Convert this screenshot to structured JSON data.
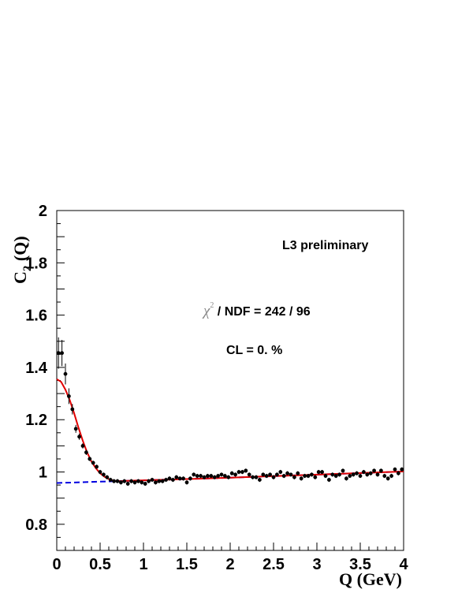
{
  "chart_data": {
    "type": "scatter",
    "xlabel": "Q (GeV)",
    "ylabel_main": "C",
    "ylabel_sub": "2",
    "ylabel_tail": " (Q)",
    "xlim": [
      0,
      4
    ],
    "ylim": [
      0.7,
      2.0
    ],
    "x_ticks": [
      0,
      0.5,
      1,
      1.5,
      2,
      2.5,
      3,
      3.5,
      4
    ],
    "x_tick_labels": [
      "0",
      "0.5",
      "1",
      "1.5",
      "2",
      "2.5",
      "3",
      "3.5",
      "4"
    ],
    "y_ticks": [
      0.8,
      1.0,
      1.2,
      1.4,
      1.6,
      1.8,
      2.0
    ],
    "y_tick_labels": [
      "0.8",
      "1",
      "1.2",
      "1.4",
      "1.6",
      "1.8",
      "2"
    ],
    "annotations": {
      "experiment": "L3 preliminary",
      "chi_symbol": "χ",
      "chi_exp": "2",
      "chi_text": " / NDF = 242 / 96",
      "cl_text": "CL = 0. %"
    },
    "series": [
      {
        "kind": "data",
        "x": [
          0.02,
          0.06,
          0.1,
          0.14,
          0.18,
          0.22,
          0.26,
          0.3,
          0.34,
          0.38,
          0.42,
          0.46,
          0.5,
          0.54,
          0.58,
          0.62,
          0.66,
          0.7,
          0.74,
          0.78,
          0.82,
          0.86,
          0.9,
          0.94,
          0.98,
          1.02,
          1.06,
          1.1,
          1.14,
          1.18,
          1.22,
          1.26,
          1.3,
          1.34,
          1.38,
          1.42,
          1.46,
          1.5,
          1.54,
          1.58,
          1.62,
          1.66,
          1.7,
          1.74,
          1.78,
          1.82,
          1.86,
          1.9,
          1.94,
          1.98,
          2.02,
          2.06,
          2.1,
          2.14,
          2.18,
          2.22,
          2.26,
          2.3,
          2.34,
          2.38,
          2.42,
          2.46,
          2.5,
          2.54,
          2.58,
          2.62,
          2.66,
          2.7,
          2.74,
          2.78,
          2.82,
          2.86,
          2.9,
          2.94,
          2.98,
          3.02,
          3.06,
          3.1,
          3.14,
          3.18,
          3.22,
          3.26,
          3.3,
          3.34,
          3.38,
          3.42,
          3.46,
          3.5,
          3.54,
          3.58,
          3.62,
          3.66,
          3.7,
          3.74,
          3.78,
          3.82,
          3.86,
          3.9,
          3.94,
          3.98
        ],
        "y": [
          1.455,
          1.455,
          1.375,
          1.29,
          1.24,
          1.165,
          1.135,
          1.1,
          1.075,
          1.05,
          1.035,
          1.02,
          1.0,
          0.99,
          0.98,
          0.97,
          0.965,
          0.965,
          0.96,
          0.965,
          0.955,
          0.965,
          0.96,
          0.965,
          0.96,
          0.955,
          0.965,
          0.97,
          0.96,
          0.965,
          0.965,
          0.97,
          0.975,
          0.97,
          0.98,
          0.975,
          0.975,
          0.96,
          0.975,
          0.99,
          0.985,
          0.985,
          0.98,
          0.985,
          0.985,
          0.98,
          0.985,
          0.99,
          0.985,
          0.98,
          0.995,
          0.99,
          1.0,
          1.0,
          1.005,
          0.99,
          0.98,
          0.98,
          0.97,
          0.99,
          0.985,
          0.99,
          0.98,
          0.99,
          1.0,
          0.985,
          0.995,
          0.99,
          0.98,
          0.995,
          0.975,
          0.985,
          0.985,
          0.99,
          0.98,
          1.0,
          1.0,
          0.985,
          0.97,
          0.99,
          0.985,
          0.99,
          1.005,
          0.975,
          0.985,
          0.99,
          0.995,
          0.985,
          1.0,
          0.99,
          0.995,
          1.005,
          0.99,
          1.005,
          0.985,
          0.975,
          0.985,
          1.01,
          0.995,
          1.01
        ],
        "yerr": [
          0.06,
          0.05,
          0.04,
          0.03,
          0.02,
          0.015,
          0.012,
          0.01,
          0.01,
          0.008,
          0.008,
          0.008,
          0.008,
          0.008,
          0.008,
          0.008,
          0.008,
          0.008,
          0.008,
          0.008,
          0.008,
          0.008,
          0.008,
          0.008,
          0.008,
          0.008,
          0.008,
          0.008,
          0.008,
          0.008,
          0.008,
          0.008,
          0.008,
          0.008,
          0.008,
          0.008,
          0.008,
          0.008,
          0.008,
          0.008,
          0.008,
          0.008,
          0.008,
          0.008,
          0.008,
          0.008,
          0.008,
          0.008,
          0.008,
          0.008,
          0.008,
          0.008,
          0.008,
          0.008,
          0.008,
          0.008,
          0.008,
          0.008,
          0.008,
          0.008,
          0.008,
          0.008,
          0.008,
          0.008,
          0.008,
          0.008,
          0.008,
          0.008,
          0.008,
          0.008,
          0.008,
          0.008,
          0.008,
          0.008,
          0.008,
          0.008,
          0.008,
          0.008,
          0.008,
          0.008,
          0.008,
          0.008,
          0.008,
          0.008,
          0.008,
          0.008,
          0.008,
          0.008,
          0.008,
          0.008,
          0.008,
          0.008,
          0.008,
          0.008,
          0.008,
          0.008,
          0.008,
          0.008,
          0.008,
          0.008
        ],
        "color": "#000000"
      },
      {
        "kind": "fit",
        "x": [
          0,
          0.05,
          0.1,
          0.15,
          0.2,
          0.25,
          0.3,
          0.35,
          0.4,
          0.45,
          0.5,
          0.55,
          0.6,
          0.65,
          0.7,
          0.75,
          0.8,
          1.0,
          1.5,
          2.0,
          2.5,
          3.0,
          3.5,
          4.0
        ],
        "y": [
          1.355,
          1.345,
          1.315,
          1.275,
          1.225,
          1.17,
          1.12,
          1.075,
          1.04,
          1.015,
          0.995,
          0.982,
          0.973,
          0.967,
          0.965,
          0.965,
          0.966,
          0.968,
          0.973,
          0.978,
          0.984,
          0.99,
          0.996,
          1.002
        ],
        "color": "#e00000"
      },
      {
        "kind": "baseline",
        "x": [
          0,
          0.5,
          1.0,
          1.5,
          2.0,
          2.5,
          3.0,
          3.5,
          4.0
        ],
        "y": [
          0.958,
          0.963,
          0.968,
          0.973,
          0.978,
          0.984,
          0.99,
          0.996,
          1.002
        ],
        "color": "#0000e0"
      }
    ],
    "grid": false
  }
}
